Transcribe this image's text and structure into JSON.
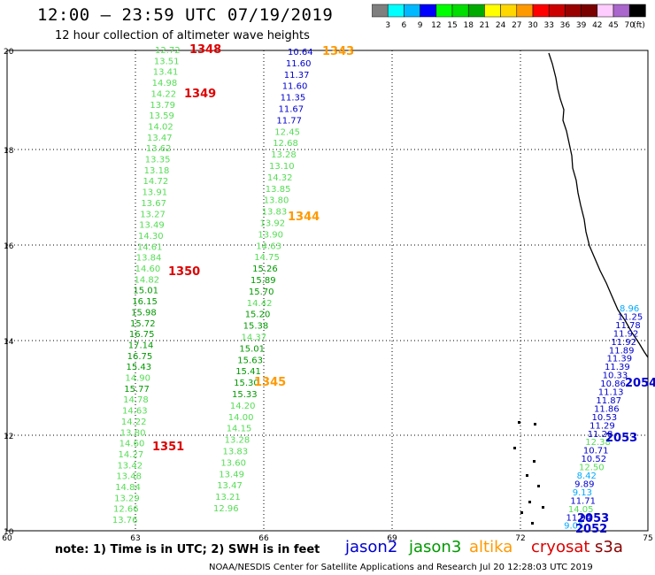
{
  "header": {
    "title": "12:00 – 23:59 UTC 07/19/2019",
    "subtitle": "12 hour collection of altimeter wave heights"
  },
  "colorbar": {
    "colors": [
      "#7f7f7f",
      "#00ffff",
      "#00b8ff",
      "#0000ff",
      "#00ff00",
      "#00dd00",
      "#00aa00",
      "#ffff00",
      "#ffd700",
      "#ff9900",
      "#ff0000",
      "#cc0000",
      "#990000",
      "#7a0000",
      "#ffccff",
      "#aa66cc",
      "#000000"
    ],
    "labels": [
      "3",
      "6",
      "9",
      "12",
      "15",
      "18",
      "21",
      "24",
      "27",
      "30",
      "33",
      "36",
      "39",
      "42",
      "45",
      "70",
      "(ft)"
    ]
  },
  "axes": {
    "x_labels": [
      "60",
      "63",
      "66",
      "69",
      "72",
      "75"
    ],
    "y_labels": [
      "10",
      "12",
      "14",
      "16",
      "18",
      "20"
    ]
  },
  "colors": {
    "jason2": "#0000cc",
    "jason3_dark": "#009900",
    "jason3_light": "#55dd55",
    "altika": "#ff9900",
    "cryosat": "#dd0000",
    "s3a": "#880000",
    "cyan": "#00aaff"
  },
  "tracks": {
    "track1": {
      "values": [
        "12.72",
        "13.51",
        "13.41",
        "14.98",
        "14.22",
        "13.79",
        "13.59",
        "14.02",
        "13.47",
        "13.62",
        "13.35",
        "13.18",
        "14.72",
        "13.91",
        "13.67",
        "13.27",
        "13.49",
        "14.30",
        "14.61",
        "13.84",
        "14.60",
        "14.82",
        "15.01",
        "16.15",
        "15.98",
        "15.72",
        "16.75",
        "17.14",
        "16.75",
        "15.43",
        "14.90",
        "15.77",
        "14.78",
        "14.63",
        "14.22",
        "13.80",
        "14.60",
        "14.27",
        "13.42",
        "13.48",
        "14.84",
        "13.29",
        "12.66",
        "13.76"
      ]
    },
    "track2": {
      "values": [
        "10.64",
        "11.60",
        "11.37",
        "11.60",
        "11.35",
        "11.67",
        "11.77",
        "12.45",
        "12.68",
        "13.28",
        "13.10",
        "14.32",
        "13.85",
        "13.80",
        "13.83",
        "13.92",
        "13.90",
        "14.63",
        "14.75",
        "15.26",
        "15.89",
        "15.70",
        "14.42",
        "15.20",
        "15.38",
        "14.37",
        "15.01",
        "15.63",
        "15.41",
        "15.30",
        "15.33",
        "14.20",
        "14.00",
        "14.15",
        "13.28",
        "13.83",
        "13.60",
        "13.49",
        "13.47",
        "13.21",
        "12.96"
      ]
    },
    "track3": {
      "values": [
        "8.96",
        "11.25",
        "11.78",
        "11.92",
        "11.92",
        "11.89",
        "11.39",
        "11.39",
        "10.33",
        "10.86",
        "11.13",
        "11.87",
        "11.86",
        "10.53",
        "11.29",
        "11.28",
        "12.38",
        "10.71",
        "10.52",
        "12.50",
        "8.42",
        "9.89",
        "9.13",
        "11.71",
        "14.05",
        "11.94",
        "9.05"
      ]
    }
  },
  "pass_labels": [
    {
      "text": "1348",
      "color": "cryosat"
    },
    {
      "text": "1349",
      "color": "cryosat"
    },
    {
      "text": "1350",
      "color": "cryosat"
    },
    {
      "text": "1351",
      "color": "cryosat"
    },
    {
      "text": "1343",
      "color": "altika"
    },
    {
      "text": "1344",
      "color": "altika"
    },
    {
      "text": "1345",
      "color": "altika"
    },
    {
      "text": "2054",
      "color": "jason2"
    },
    {
      "text": "2053",
      "color": "jason2"
    },
    {
      "text": "2053",
      "color": "jason2"
    },
    {
      "text": "2052",
      "color": "jason2"
    }
  ],
  "note": "note:  1) Time is in UTC;  2) SWH is in feet",
  "legend": {
    "jason2": "jason2",
    "jason3": "jason3",
    "altika": "altika",
    "cryosat": "cryosat",
    "s3a": "s3a"
  },
  "footer": "NOAA/NESDIS Center for Satellite Applications and Research   Jul 20 12:28:03 UTC 2019"
}
